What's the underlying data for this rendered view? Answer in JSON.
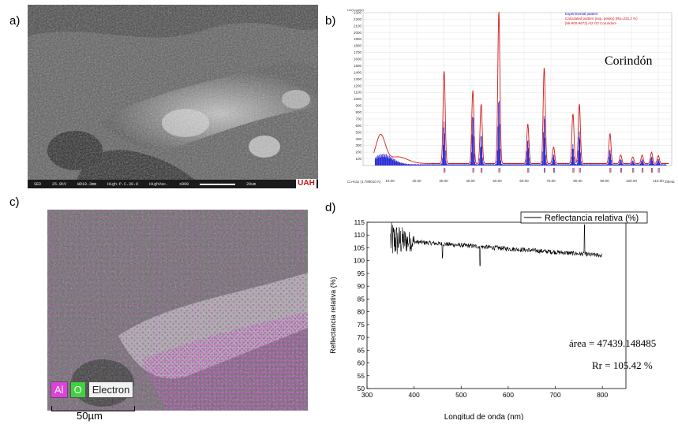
{
  "panels": {
    "a": {
      "label": "a)",
      "sem_footer": [
        "SED",
        "25.0kV",
        "WD10.3mm",
        "High-P.C.30.0",
        "HighVac.",
        "x800"
      ],
      "scale_text": "20um",
      "logo": "UAH"
    },
    "b": {
      "label": "b)",
      "title": "Corindón",
      "ytitle": "Lin(Counts)",
      "legend": [
        "Experimental pattern",
        "Calculated pattern (exp. peaks) (Rp=231.2 %)",
        "[96-900-9672] Al2 O3 Corundum"
      ],
      "xlabel_left": "Co-Ka1 (1.789010 A)",
      "xlabel_right": "2theta"
    },
    "c": {
      "label": "c)",
      "legend": [
        "Al",
        "O",
        "Electron"
      ],
      "scale_text": "50µm"
    },
    "d": {
      "label": "d)",
      "legend": "Reflectancia relativa (%)",
      "xlabel": "Longitud de onda (nm)",
      "ylabel": "Reflectancia relativa (%)",
      "annotation_area": "área = 47439.148485",
      "annotation_rr": "Rr = 105.42 %"
    }
  },
  "colors": {
    "experimental": "#1515d0",
    "calculated": "#d41c1c",
    "al_map": "#e040e0",
    "o_map": "#3fd23f"
  },
  "chart_data": [
    {
      "type": "line",
      "title": "Corindón",
      "ylabel": "Lin(Counts)",
      "xlabel": "2theta",
      "xlim": [
        0,
        115
      ],
      "ylim": [
        0,
        2300
      ],
      "xticks": [
        10,
        20,
        30,
        40,
        50,
        60,
        70,
        80,
        90,
        100,
        110
      ],
      "yticks": [
        100,
        200,
        300,
        400,
        500,
        600,
        700,
        800,
        900,
        1000,
        1100,
        1200,
        1300,
        1400,
        1500,
        1600,
        1700,
        1800,
        1900,
        2000,
        2100,
        2200,
        2300
      ],
      "series": [
        {
          "name": "Experimental pattern",
          "peaks_x": [
            30.2,
            40.9,
            44.0,
            50.6,
            61.4,
            67.5,
            71.0,
            78.2,
            80.6,
            92.0,
            96.0,
            100.5,
            104.0,
            107.5,
            110.0
          ],
          "peaks_y": [
            650,
            750,
            450,
            1000,
            380,
            750,
            150,
            300,
            500,
            230,
            80,
            60,
            80,
            120,
            80
          ]
        },
        {
          "name": "Calculated pattern (exp. peaks) (Rp=231.2 %)",
          "peaks_x": [
            30.2,
            40.9,
            44.0,
            50.6,
            61.4,
            67.5,
            71.0,
            78.2,
            80.6,
            92.0,
            96.0,
            100.5,
            104.0,
            107.5,
            110.0
          ],
          "peaks_y": [
            1400,
            1100,
            900,
            2300,
            600,
            1450,
            250,
            750,
            900,
            450,
            130,
            100,
            130,
            170,
            120
          ]
        },
        {
          "name": "[96-900-9672] Al2 O3 Corundum",
          "ticks_x": [
            30.2,
            40.9,
            44.0,
            50.6,
            61.4,
            67.5,
            71.0,
            78.2,
            80.6,
            92.0,
            96.0,
            100.5,
            104.0,
            107.5,
            110.0
          ]
        }
      ]
    },
    {
      "type": "line",
      "xlabel": "Longitud de onda (nm)",
      "ylabel": "Reflectancia relativa (%)",
      "xlim": [
        300,
        850
      ],
      "ylim": [
        50,
        115
      ],
      "xticks": [
        300,
        400,
        500,
        600,
        700,
        800
      ],
      "yticks": [
        50,
        55,
        60,
        65,
        70,
        75,
        80,
        85,
        90,
        95,
        100,
        105,
        110,
        115
      ],
      "series": [
        {
          "name": "Reflectancia relativa (%)",
          "x_start": 350,
          "x_end": 800,
          "y_start": 108,
          "y_end": 102
        }
      ]
    }
  ]
}
